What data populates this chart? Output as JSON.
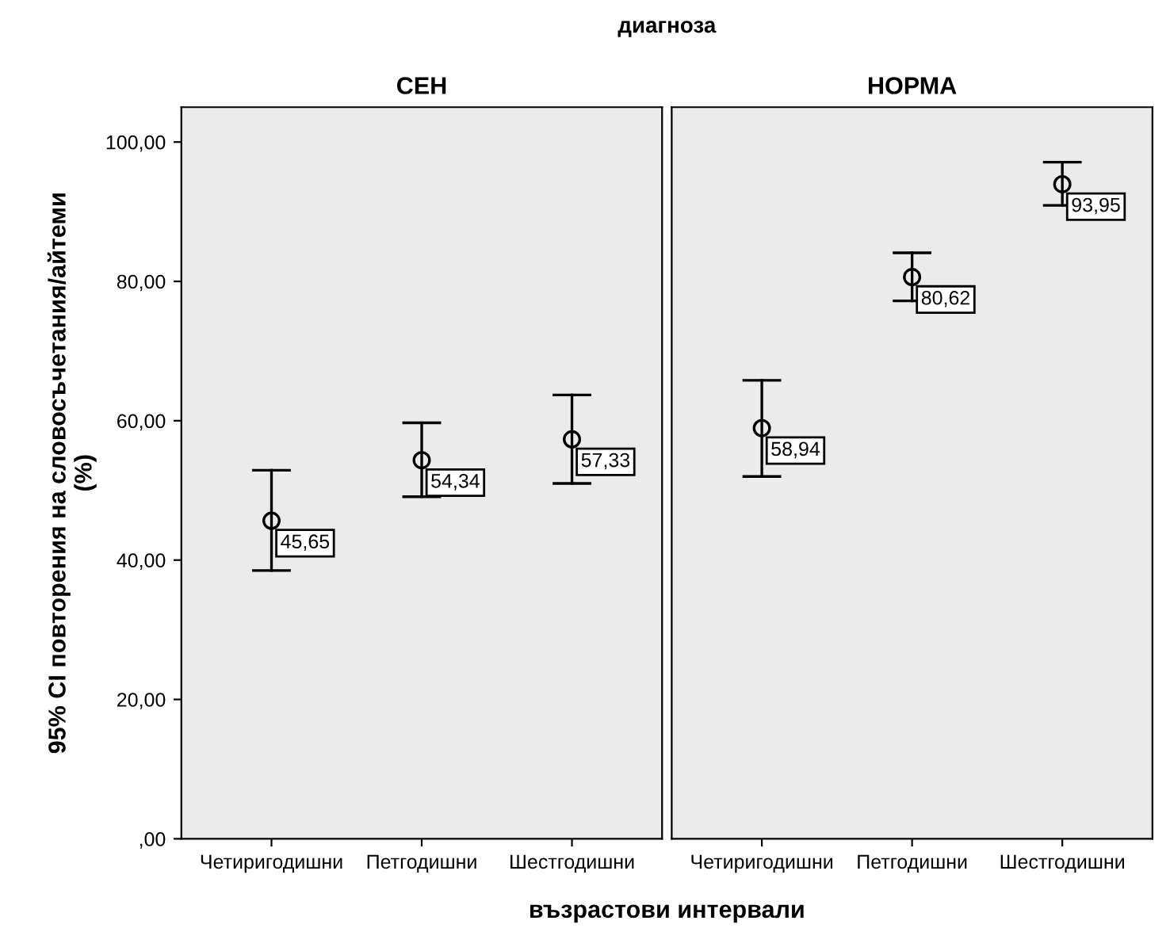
{
  "chart_data": [
    {
      "type": "scatter",
      "title": "СЕН",
      "ylabel": "95% CI повторения на словосъчетания/айтеми\n(%)",
      "xlabel": "възрастови интервали",
      "annotations": [
        "диагноза"
      ],
      "categories": [
        "Четиригодишни",
        "Петгодишни",
        "Шестгодишни"
      ],
      "values": [
        45.65,
        54.34,
        57.33
      ],
      "errors": [
        [
          38.5,
          52.9
        ],
        [
          49.1,
          59.7
        ],
        [
          51.0,
          63.7
        ]
      ],
      "value_labels": [
        "45,65",
        "54,34",
        "57,33"
      ],
      "color": "#000000",
      "marker": "circle",
      "ylim": [
        0,
        105
      ],
      "yticks": [
        {
          "value": 0,
          "label": ",00"
        },
        {
          "value": 20,
          "label": "20,00"
        },
        {
          "value": 40,
          "label": "40,00"
        },
        {
          "value": 60,
          "label": "60,00"
        },
        {
          "value": 80,
          "label": "80,00"
        },
        {
          "value": 100,
          "label": "100,00"
        }
      ]
    },
    {
      "type": "scatter",
      "title": "НОРМА",
      "categories": [
        "Четиригодишни",
        "Петгодишни",
        "Шестгодишни"
      ],
      "values": [
        58.94,
        80.62,
        93.95
      ],
      "errors": [
        [
          52.0,
          65.8
        ],
        [
          77.2,
          84.1
        ],
        [
          90.9,
          97.1
        ]
      ],
      "value_labels": [
        "58,94",
        "80,62",
        "93,95"
      ],
      "color": "#000000",
      "marker": "circle",
      "tick_labels": "x",
      "ylim": [
        0,
        105
      ]
    }
  ]
}
